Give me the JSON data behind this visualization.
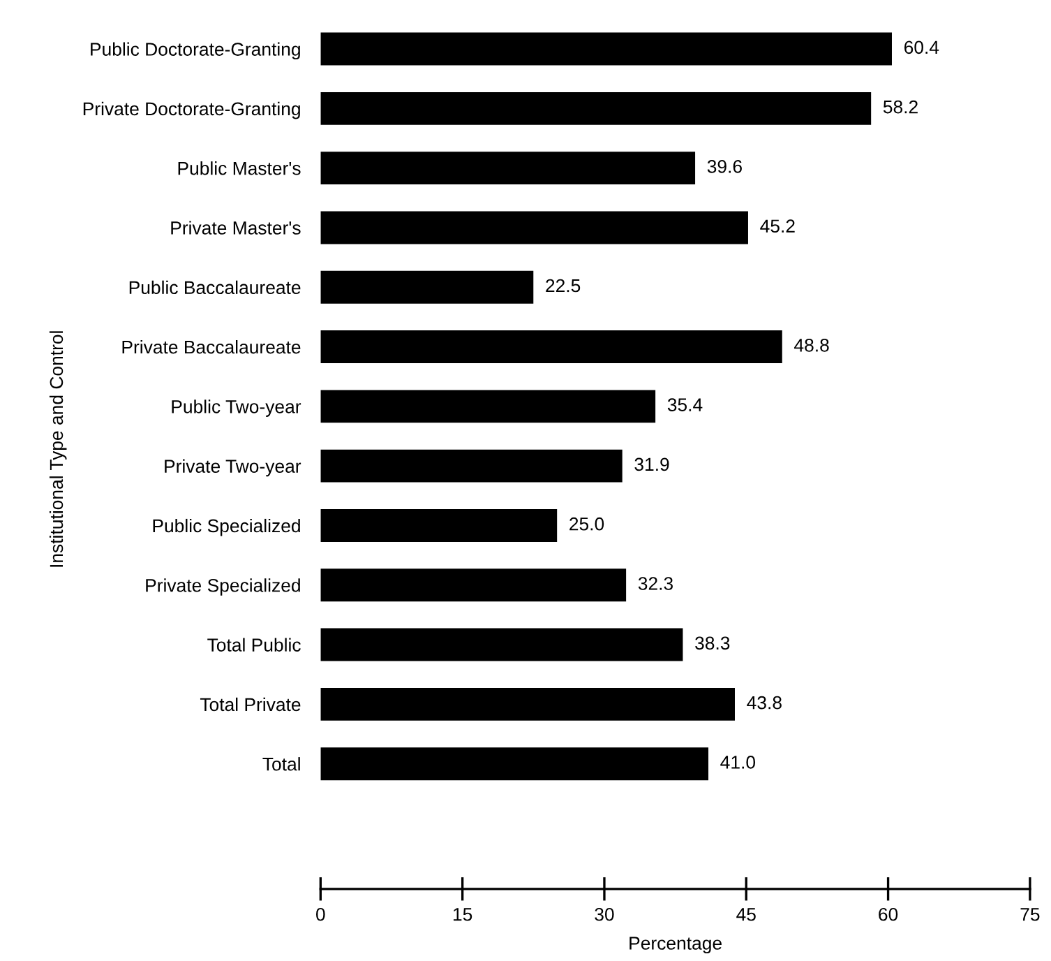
{
  "chart_data": {
    "type": "bar",
    "orientation": "horizontal",
    "xlabel": "Percentage",
    "ylabel": "Institutional Type and Control",
    "categories": [
      "Public Doctorate-Granting",
      "Private Doctorate-Granting",
      "Public Master's",
      "Private Master's",
      "Public Baccalaureate",
      "Private Baccalaureate",
      "Public Two-year",
      "Private Two-year",
      "Public Specialized",
      "Private Specialized",
      "Total Public",
      "Total Private",
      "Total"
    ],
    "values": [
      60.4,
      58.2,
      39.6,
      45.2,
      22.5,
      48.8,
      35.4,
      31.9,
      25.0,
      32.3,
      38.3,
      43.8,
      41.0
    ],
    "value_labels": [
      "60.4",
      "58.2",
      "39.6",
      "45.2",
      "22.5",
      "48.8",
      "35.4",
      "31.9",
      "25.0",
      "32.3",
      "38.3",
      "43.8",
      "41.0"
    ],
    "color": "#000000",
    "xlim": [
      0,
      75
    ],
    "xticks": [
      0,
      15,
      30,
      45,
      60,
      75
    ],
    "grid": false,
    "legend": false
  }
}
